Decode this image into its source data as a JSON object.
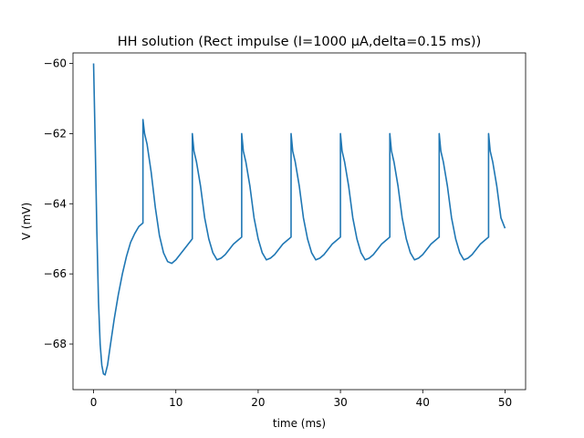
{
  "chart_data": {
    "type": "line",
    "title": "HH solution (Rect impulse (I=1000 μA,delta=0.15 ms))",
    "xlabel": "time (ms)",
    "ylabel": "V (mV)",
    "xlim": [
      -2.5,
      52.5
    ],
    "ylim": [
      -69.3,
      -59.7
    ],
    "x_ticks": [
      0,
      10,
      20,
      30,
      40,
      50
    ],
    "y_ticks": [
      -68,
      -66,
      -64,
      -62,
      -60
    ],
    "grid": false,
    "legend": "none",
    "series": [
      {
        "color": "#1f77b4",
        "x": [
          0,
          0.2,
          0.4,
          0.6,
          0.8,
          1.0,
          1.2,
          1.4,
          1.7,
          2.0,
          2.5,
          3.0,
          3.5,
          4.0,
          4.5,
          5.0,
          5.5,
          6.0,
          6.0,
          6.2,
          6.5,
          7.0,
          7.5,
          8.0,
          8.5,
          9.0,
          9.5,
          10.0,
          10.5,
          11.0,
          11.5,
          12.0,
          12.0,
          12.2,
          12.5,
          13.0,
          13.5,
          14.0,
          14.5,
          15.0,
          15.5,
          16.0,
          16.5,
          17.0,
          17.5,
          18.0,
          18.0,
          18.2,
          18.5,
          19.0,
          19.5,
          20.0,
          20.5,
          21.0,
          21.5,
          22.0,
          22.5,
          23.0,
          23.5,
          24.0,
          24.0,
          24.2,
          24.5,
          25.0,
          25.5,
          26.0,
          26.5,
          27.0,
          27.5,
          28.0,
          28.5,
          29.0,
          29.5,
          30.0,
          30.0,
          30.2,
          30.5,
          31.0,
          31.5,
          32.0,
          32.5,
          33.0,
          33.5,
          34.0,
          34.5,
          35.0,
          35.5,
          36.0,
          36.0,
          36.2,
          36.5,
          37.0,
          37.5,
          38.0,
          38.5,
          39.0,
          39.5,
          40.0,
          40.5,
          41.0,
          41.5,
          42.0,
          42.0,
          42.2,
          42.5,
          43.0,
          43.5,
          44.0,
          44.5,
          45.0,
          45.5,
          46.0,
          46.5,
          47.0,
          47.5,
          48.0,
          48.0,
          48.2,
          48.5,
          49.0,
          49.5,
          50.0
        ],
        "values": [
          -60.0,
          -62.3,
          -64.8,
          -66.8,
          -68.0,
          -68.6,
          -68.85,
          -68.88,
          -68.6,
          -68.1,
          -67.3,
          -66.6,
          -66.0,
          -65.5,
          -65.1,
          -64.85,
          -64.65,
          -64.55,
          -61.6,
          -62.0,
          -62.3,
          -63.1,
          -64.1,
          -64.9,
          -65.4,
          -65.65,
          -65.7,
          -65.6,
          -65.45,
          -65.3,
          -65.15,
          -65.0,
          -62.0,
          -62.5,
          -62.8,
          -63.5,
          -64.4,
          -65.0,
          -65.4,
          -65.6,
          -65.55,
          -65.45,
          -65.3,
          -65.15,
          -65.05,
          -64.95,
          -62.0,
          -62.5,
          -62.8,
          -63.5,
          -64.4,
          -65.0,
          -65.4,
          -65.6,
          -65.55,
          -65.45,
          -65.3,
          -65.15,
          -65.05,
          -64.95,
          -62.0,
          -62.5,
          -62.8,
          -63.5,
          -64.4,
          -65.0,
          -65.4,
          -65.6,
          -65.55,
          -65.45,
          -65.3,
          -65.15,
          -65.05,
          -64.95,
          -62.0,
          -62.5,
          -62.8,
          -63.5,
          -64.4,
          -65.0,
          -65.4,
          -65.6,
          -65.55,
          -65.45,
          -65.3,
          -65.15,
          -65.05,
          -64.95,
          -62.0,
          -62.5,
          -62.8,
          -63.5,
          -64.4,
          -65.0,
          -65.4,
          -65.6,
          -65.55,
          -65.45,
          -65.3,
          -65.15,
          -65.05,
          -64.95,
          -62.0,
          -62.5,
          -62.8,
          -63.5,
          -64.4,
          -65.0,
          -65.4,
          -65.6,
          -65.55,
          -65.45,
          -65.3,
          -65.15,
          -65.05,
          -64.95,
          -62.0,
          -62.5,
          -62.8,
          -63.5,
          -64.4,
          -64.7
        ]
      }
    ]
  }
}
